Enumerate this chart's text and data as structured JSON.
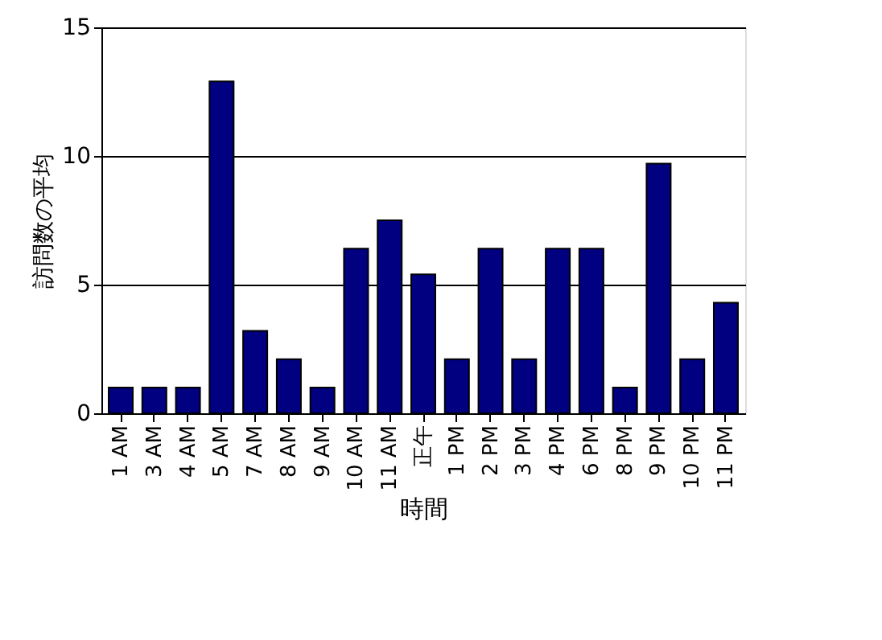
{
  "chart_data": {
    "type": "bar",
    "xlabel": "時間",
    "ylabel": "訪問数の平均",
    "categories": [
      "1 AM",
      "3 AM",
      "4 AM",
      "5 AM",
      "7 AM",
      "8 AM",
      "9 AM",
      "10 AM",
      "11 AM",
      "正午",
      "1 PM",
      "2 PM",
      "3 PM",
      "4 PM",
      "6 PM",
      "8 PM",
      "9 PM",
      "10 PM",
      "11 PM"
    ],
    "values": [
      1,
      1,
      1,
      12.9,
      3.2,
      2.1,
      1,
      6.4,
      7.5,
      5.4,
      2.1,
      6.4,
      2.1,
      6.4,
      6.4,
      1,
      9.7,
      2.1,
      4.3
    ],
    "color": "#000080",
    "ylim": [
      0,
      15
    ],
    "yticks": [
      0,
      5,
      10,
      15
    ],
    "grid": "y"
  }
}
